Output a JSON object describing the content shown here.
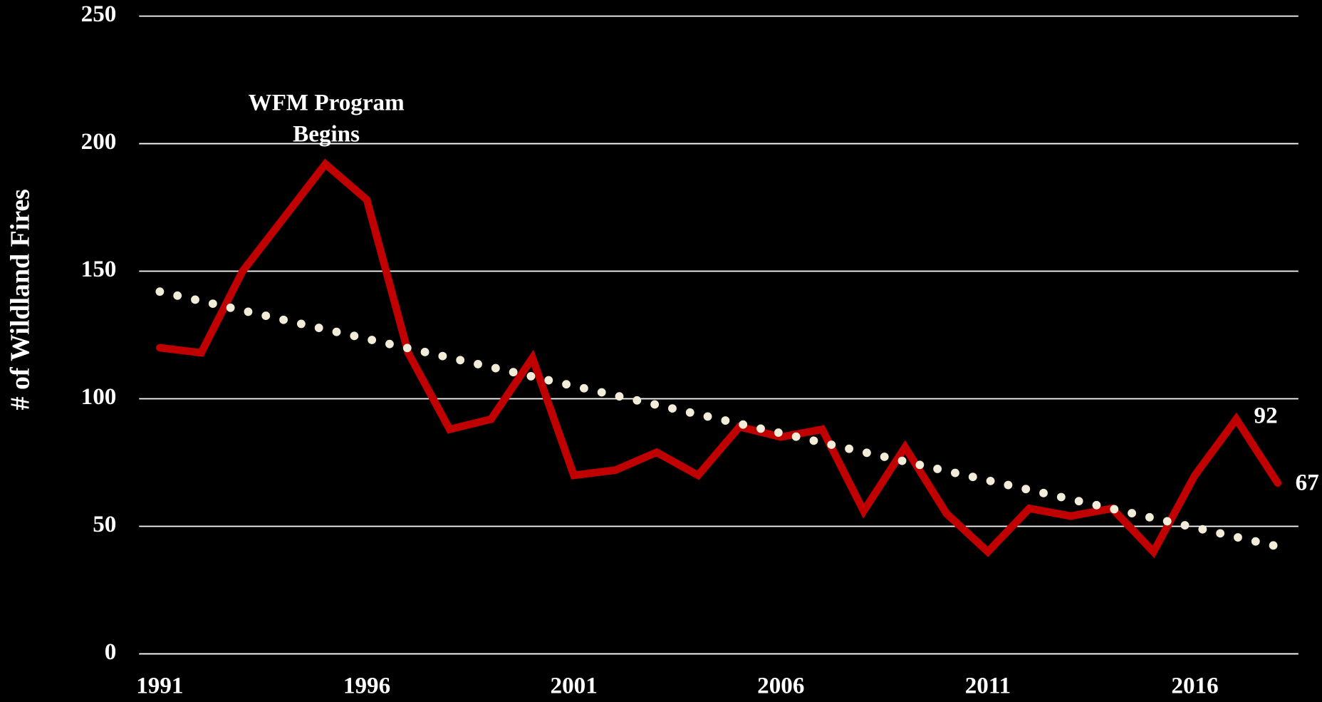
{
  "chart_data": {
    "type": "line",
    "y_label": "# of Wildland Fires",
    "annotation": [
      "WFM Program",
      "Begins"
    ],
    "x": [
      1991,
      1992,
      1993,
      1994,
      1995,
      1996,
      1997,
      1998,
      1999,
      2000,
      2001,
      2002,
      2003,
      2004,
      2005,
      2006,
      2007,
      2008,
      2009,
      2010,
      2011,
      2012,
      2013,
      2014,
      2015,
      2016,
      2017,
      2018
    ],
    "series": [
      {
        "color": "#c00000",
        "style": "solid",
        "values": [
          120,
          118,
          150,
          171,
          192,
          178,
          118,
          88,
          92,
          116,
          70,
          72,
          79,
          70,
          89,
          85,
          88,
          56,
          81,
          55,
          40,
          57,
          54,
          57,
          40,
          70,
          92,
          67
        ]
      },
      {
        "color": "#f2ecd8",
        "style": "dotted",
        "values": [
          142,
          138.3,
          134.6,
          130.9,
          127.2,
          123.5,
          119.8,
          116.1,
          112.4,
          108.7,
          105,
          101.3,
          97.6,
          93.9,
          90.2,
          86.5,
          82.8,
          79.1,
          75.4,
          71.7,
          68,
          64.3,
          60.6,
          56.9,
          53.2,
          49.5,
          45.8,
          42.1
        ]
      }
    ],
    "labeled_points": [
      26,
      27
    ],
    "xlim": [
      1990.5,
      2018.5
    ],
    "xticks": [
      1991,
      1996,
      2001,
      2006,
      2011,
      2016
    ],
    "ylim": [
      0,
      250
    ],
    "yticks": [
      0,
      50,
      100,
      150,
      200,
      250
    ],
    "grid": true
  }
}
